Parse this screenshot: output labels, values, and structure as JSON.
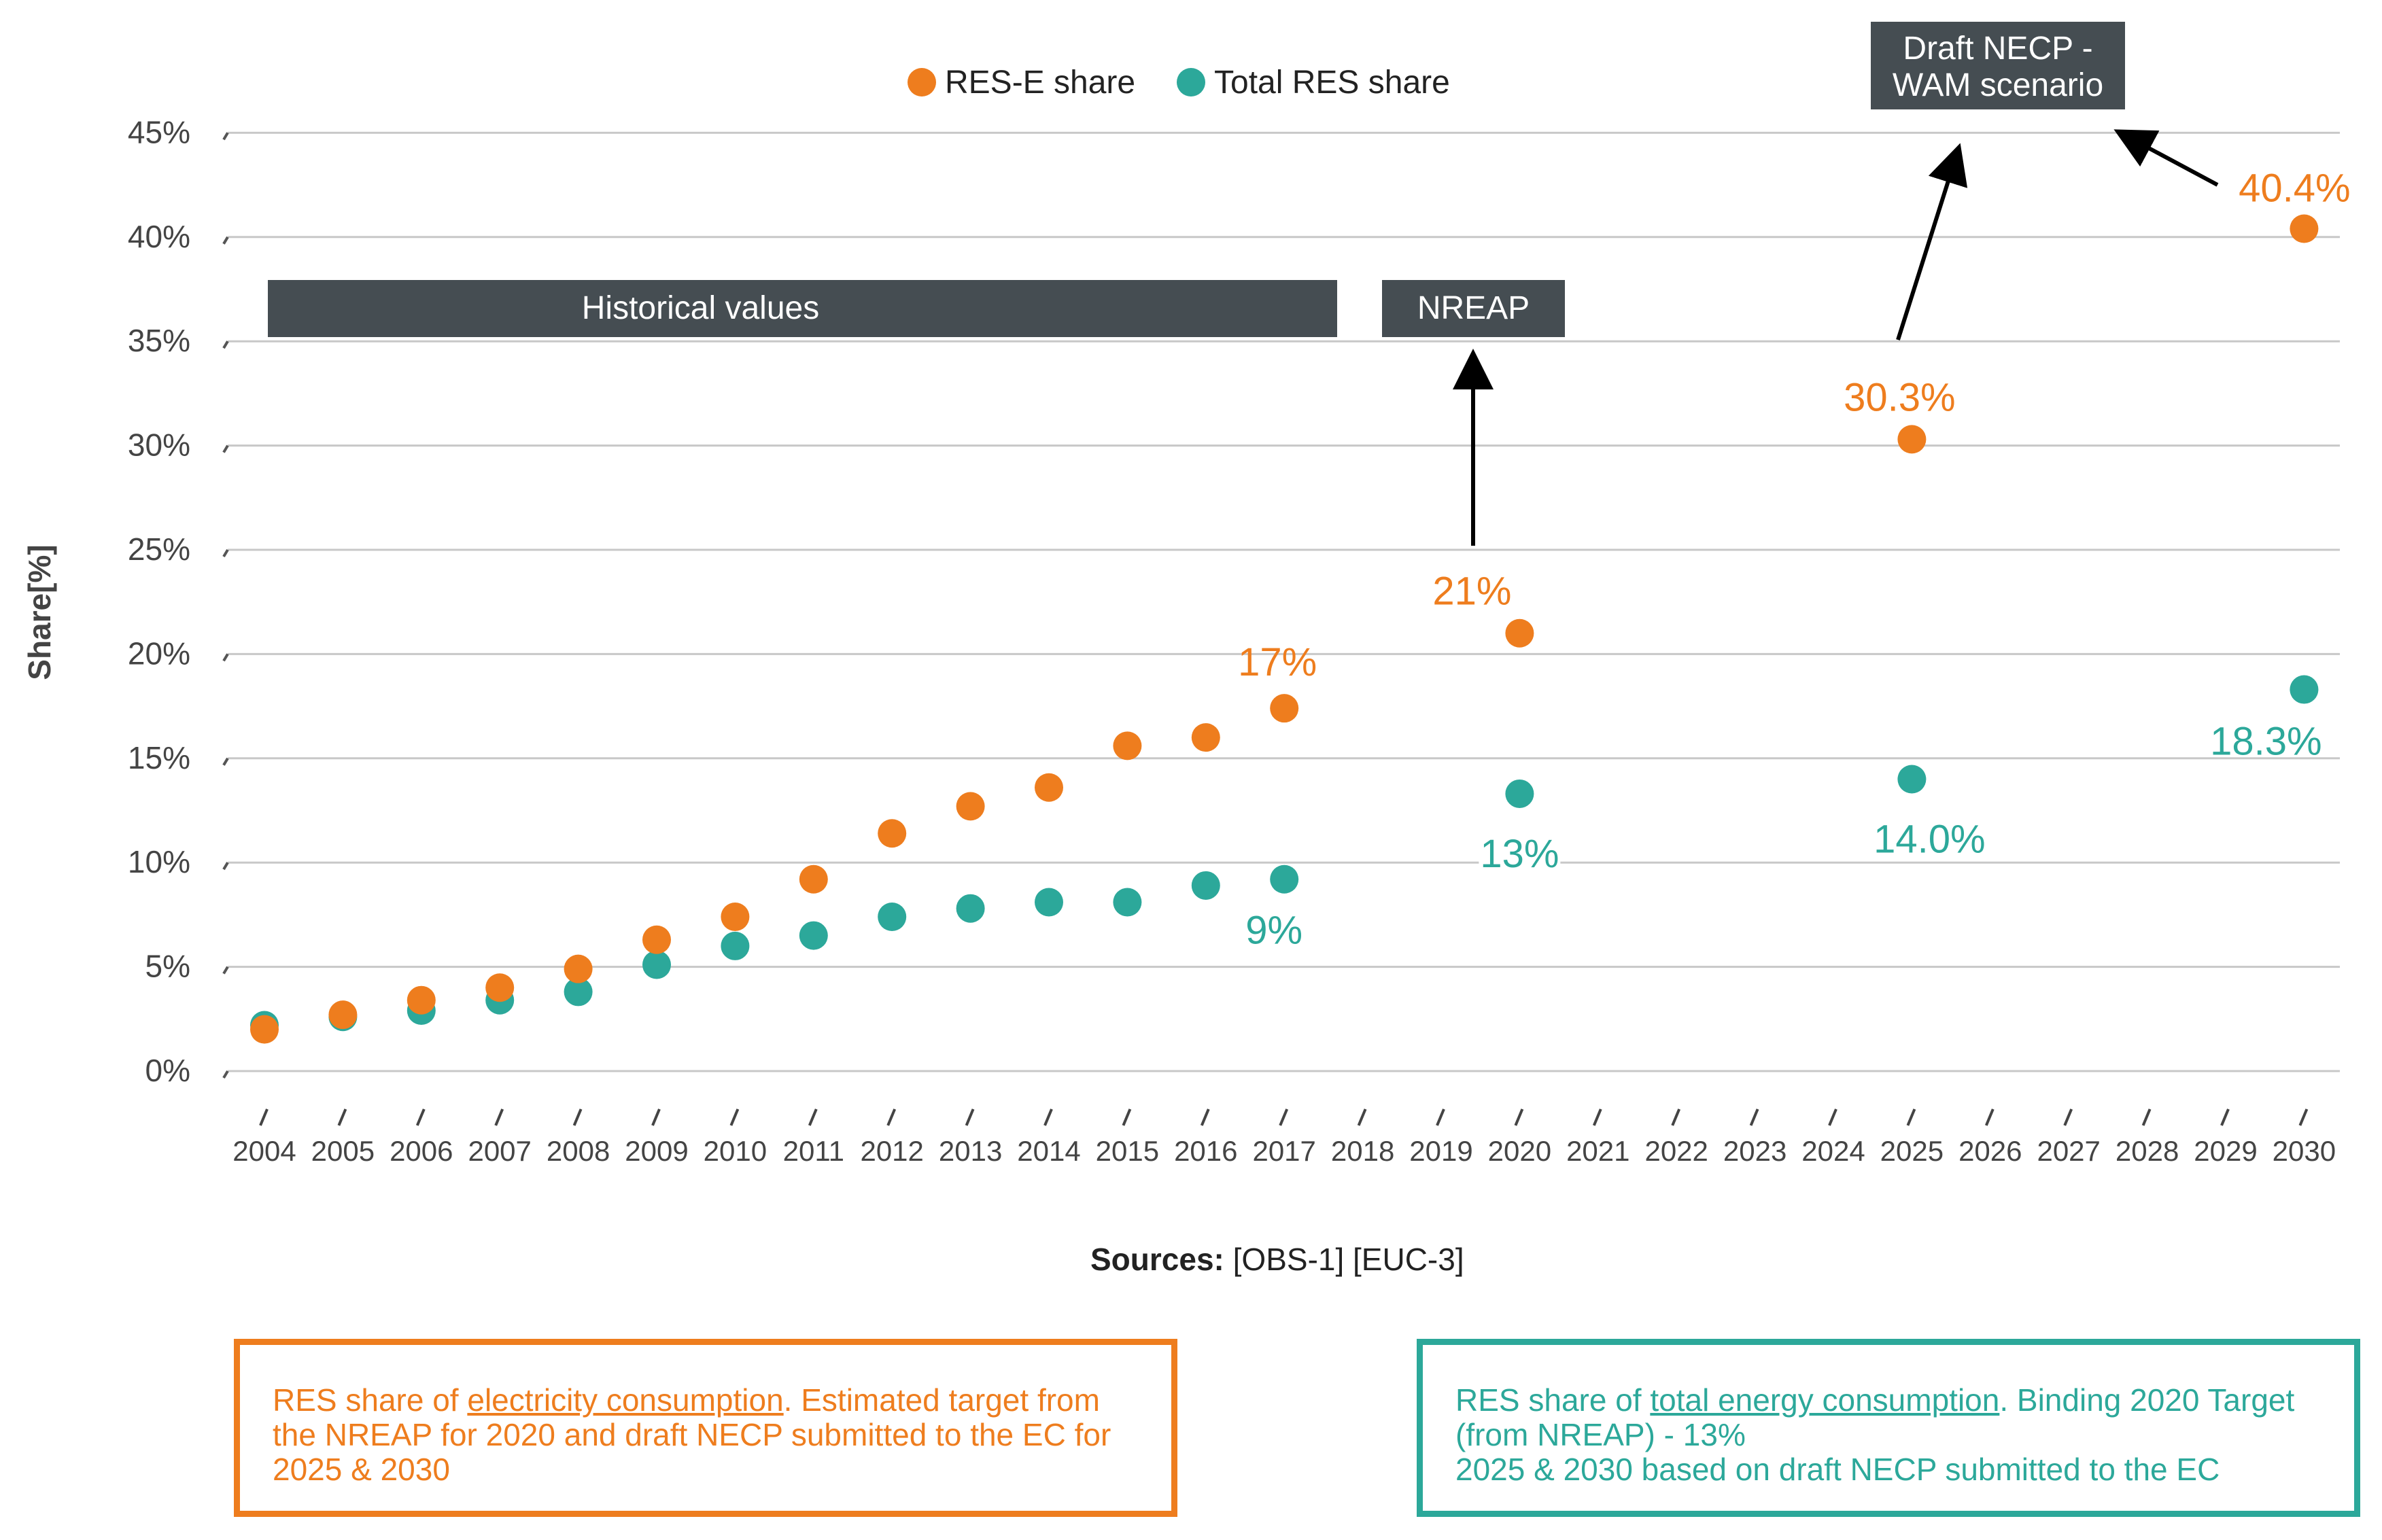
{
  "colors": {
    "rese": "#EE7D1E",
    "total": "#2CA89A",
    "band": "#454D52",
    "grid": "#C8C8C8",
    "text": "#444444"
  },
  "sources": {
    "label": "Sources:",
    "refs": "[OBS-1] [EUC-3]"
  },
  "notes": {
    "rese": {
      "prefix": "RES share of ",
      "underlined": "electricity consumption",
      "rest": ". Estimated target from the NREAP for 2020 and draft NECP submitted to the EC for 2025 & 2030"
    },
    "total": {
      "prefix": "RES share of ",
      "underlined": "total energy consumption",
      "rest": ". Binding 2020 Target (from NREAP) - 13%",
      "line3": "2025 & 2030 based on draft NECP submitted to the EC"
    }
  },
  "chart_data": {
    "type": "scatter",
    "title": "",
    "xlabel": "",
    "ylabel": "Share[%]",
    "ylim": [
      0,
      45
    ],
    "yticks": [
      0,
      5,
      10,
      15,
      20,
      25,
      30,
      35,
      40,
      45
    ],
    "ytick_labels": [
      "0%",
      "5%",
      "10%",
      "15%",
      "20%",
      "25%",
      "30%",
      "35%",
      "40%",
      "45%"
    ],
    "categories": [
      "2004",
      "2005",
      "2006",
      "2007",
      "2008",
      "2009",
      "2010",
      "2011",
      "2012",
      "2013",
      "2014",
      "2015",
      "2016",
      "2017",
      "2018",
      "2019",
      "2020",
      "2021",
      "2022",
      "2023",
      "2024",
      "2025",
      "2026",
      "2027",
      "2028",
      "2029",
      "2030"
    ],
    "grid": true,
    "legend_position": "top-center",
    "series": [
      {
        "name": "RES-E share",
        "color": "#EE7D1E",
        "points": [
          {
            "x": "2004",
            "y": 2.0
          },
          {
            "x": "2005",
            "y": 2.7
          },
          {
            "x": "2006",
            "y": 3.4
          },
          {
            "x": "2007",
            "y": 4.0
          },
          {
            "x": "2008",
            "y": 4.9
          },
          {
            "x": "2009",
            "y": 6.3
          },
          {
            "x": "2010",
            "y": 7.4
          },
          {
            "x": "2011",
            "y": 9.2
          },
          {
            "x": "2012",
            "y": 11.4
          },
          {
            "x": "2013",
            "y": 12.7
          },
          {
            "x": "2014",
            "y": 13.6
          },
          {
            "x": "2015",
            "y": 15.6
          },
          {
            "x": "2016",
            "y": 16.0
          },
          {
            "x": "2017",
            "y": 17.4
          },
          {
            "x": "2020",
            "y": 21.0
          },
          {
            "x": "2025",
            "y": 30.3
          },
          {
            "x": "2030",
            "y": 40.4
          }
        ]
      },
      {
        "name": "Total RES share",
        "color": "#2CA89A",
        "points": [
          {
            "x": "2004",
            "y": 2.2
          },
          {
            "x": "2005",
            "y": 2.6
          },
          {
            "x": "2006",
            "y": 2.9
          },
          {
            "x": "2007",
            "y": 3.4
          },
          {
            "x": "2008",
            "y": 3.8
          },
          {
            "x": "2009",
            "y": 5.1
          },
          {
            "x": "2010",
            "y": 6.0
          },
          {
            "x": "2011",
            "y": 6.5
          },
          {
            "x": "2012",
            "y": 7.4
          },
          {
            "x": "2013",
            "y": 7.8
          },
          {
            "x": "2014",
            "y": 8.1
          },
          {
            "x": "2015",
            "y": 8.1
          },
          {
            "x": "2016",
            "y": 8.9
          },
          {
            "x": "2017",
            "y": 9.2
          },
          {
            "x": "2020",
            "y": 13.3
          },
          {
            "x": "2025",
            "y": 14.0
          },
          {
            "x": "2030",
            "y": 18.3
          }
        ]
      }
    ],
    "data_labels": [
      {
        "series": "RES-E share",
        "x": "2017",
        "text": "17%",
        "placement": "above"
      },
      {
        "series": "RES-E share",
        "x": "2020",
        "text": "21%",
        "placement": "above"
      },
      {
        "series": "RES-E share",
        "x": "2025",
        "text": "30.3%",
        "placement": "above"
      },
      {
        "series": "RES-E share",
        "x": "2030",
        "text": "40.4%",
        "placement": "above"
      },
      {
        "series": "Total RES share",
        "x": "2017",
        "text": "9%",
        "placement": "below"
      },
      {
        "series": "Total RES share",
        "x": "2020",
        "text": "13%",
        "placement": "below"
      },
      {
        "series": "Total RES share",
        "x": "2025",
        "text": "14.0%",
        "placement": "below"
      },
      {
        "series": "Total RES share",
        "x": "2030",
        "text": "18.3%",
        "placement": "below"
      }
    ],
    "annotations": [
      {
        "text": "Historical values",
        "kind": "band",
        "from": "2004",
        "to": "2017"
      },
      {
        "text": "NREAP",
        "kind": "band",
        "from": "2019",
        "to": "2020"
      },
      {
        "text": "Draft NECP - WAM scenario",
        "kind": "box",
        "lines": [
          "Draft NECP -",
          "WAM scenario"
        ]
      }
    ]
  }
}
